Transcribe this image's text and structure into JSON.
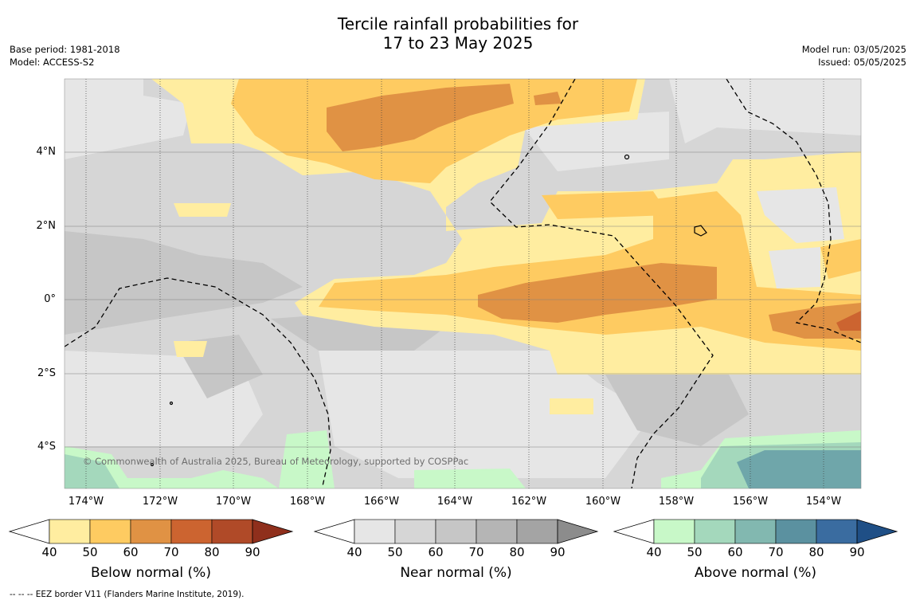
{
  "title_line1": "Tercile rainfall probabilities for",
  "title_line2": "17 to 23 May 2025",
  "base_period": "Base period: 1981-2018",
  "model": "Model: ACCESS-S2",
  "model_run": "Model run: 03/05/2025",
  "issued": "Issued: 05/05/2025",
  "copyright": "© Commonwealth of Australia 2025, Bureau of Meteorology, supported by COSPPac",
  "footnote": "--  --  -- EEZ border V11 (Flanders Marine Institute, 2019).",
  "lat_labels": [
    "4°N",
    "2°N",
    "0°",
    "2°S",
    "4°S"
  ],
  "lon_labels": [
    "174°W",
    "172°W",
    "170°W",
    "168°W",
    "166°W",
    "164°W",
    "162°W",
    "160°W",
    "158°W",
    "156°W",
    "154°W"
  ],
  "colorbars": [
    {
      "title": "Below normal (%)",
      "ticks": [
        "40",
        "50",
        "60",
        "70",
        "80",
        "90"
      ],
      "colors": [
        "#ffeda0",
        "#fecb61",
        "#e09244",
        "#cc6430",
        "#b04a28",
        "#8f2f1c"
      ]
    },
    {
      "title": "Near normal (%)",
      "ticks": [
        "40",
        "50",
        "60",
        "70",
        "80",
        "90"
      ],
      "colors": [
        "#e6e6e6",
        "#d6d6d6",
        "#c6c6c6",
        "#b5b5b5",
        "#a4a4a4",
        "#8c8c8c"
      ]
    },
    {
      "title": "Above normal (%)",
      "ticks": [
        "40",
        "50",
        "60",
        "70",
        "80",
        "90"
      ],
      "colors": [
        "#c8f8c8",
        "#a4d8bc",
        "#82b8b0",
        "#5b91a0",
        "#3a6ca0",
        "#1f4f86"
      ]
    }
  ],
  "palette": {
    "below": [
      "#ffeda0",
      "#fecb61",
      "#e09244",
      "#cc6430"
    ],
    "near": [
      "#e6e6e6",
      "#d6d6d6",
      "#c6c6c6"
    ],
    "above": [
      "#c8f8c8",
      "#a4d8bc",
      "#82b8b0",
      "#6fa6aa"
    ]
  }
}
